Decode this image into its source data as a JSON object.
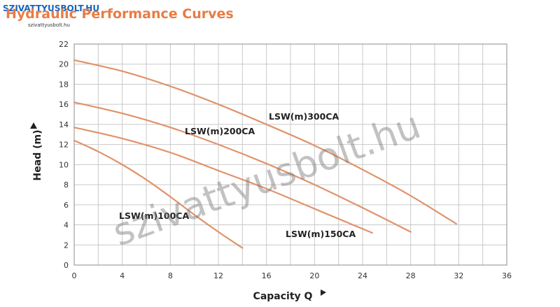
{
  "header": {
    "logo_text": "SZIVATTYUSBOLT.HU",
    "logo_subtext": "szivattyusbolt.hu",
    "title": "Hydraulic Performance Curves"
  },
  "watermark": "szivattyusbolt.hu",
  "colors": {
    "curve": "#e0936a",
    "title": "#e87c45",
    "logo": "#1565c0"
  },
  "chart_data": {
    "type": "line",
    "title": "Hydraulic Performance Curves",
    "xlabel": "Capacity Q",
    "ylabel": "Head (m)",
    "xlim": [
      0,
      36
    ],
    "ylim": [
      0,
      22
    ],
    "xticks": [
      0,
      4,
      8,
      12,
      16,
      20,
      24,
      28,
      32,
      36
    ],
    "yticks": [
      0,
      2,
      4,
      6,
      8,
      10,
      12,
      14,
      16,
      18,
      20,
      22
    ],
    "grid": true,
    "series": [
      {
        "name": "LSW(m)100CA",
        "x": [
          0,
          2,
          4,
          6,
          8,
          10,
          12,
          14
        ],
        "y": [
          12.4,
          11.3,
          10.0,
          8.5,
          6.8,
          5.0,
          3.3,
          1.7
        ]
      },
      {
        "name": "LSW(m)150CA",
        "x": [
          0,
          4,
          8,
          12,
          16,
          20,
          24.8
        ],
        "y": [
          13.7,
          12.6,
          11.2,
          9.4,
          7.6,
          5.6,
          3.2
        ]
      },
      {
        "name": "LSW(m)200CA",
        "x": [
          0,
          4,
          8,
          12,
          16,
          20,
          24,
          28
        ],
        "y": [
          16.2,
          15.1,
          13.7,
          12.0,
          10.1,
          8.0,
          5.7,
          3.3
        ]
      },
      {
        "name": "LSW(m)300CA",
        "x": [
          0,
          4,
          8,
          12,
          16,
          20,
          24,
          28,
          31.8
        ],
        "y": [
          20.4,
          19.3,
          17.8,
          16.0,
          14.0,
          11.9,
          9.5,
          6.9,
          4.1
        ]
      }
    ]
  }
}
